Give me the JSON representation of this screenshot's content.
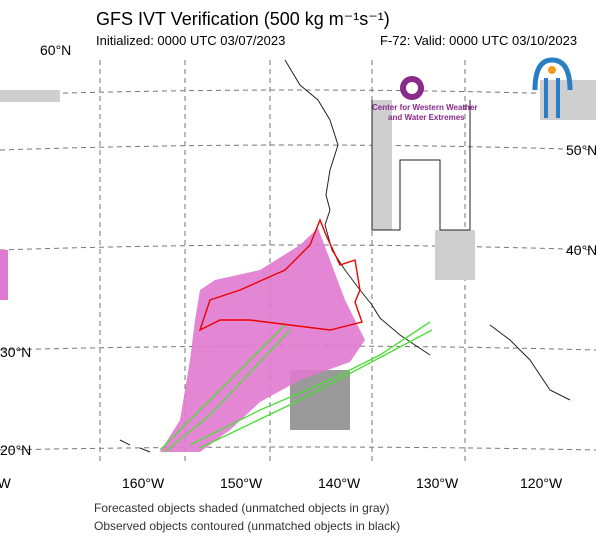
{
  "header": {
    "title": "GFS IVT Verification (500 kg m⁻¹s⁻¹)",
    "initialized": "Initialized: 0000 UTC 03/07/2023",
    "valid": "F-72: Valid: 0000 UTC 03/10/2023"
  },
  "logo": {
    "line1": "Center for Western Weather",
    "line2": "and Water Extremes"
  },
  "map": {
    "lat_labels": [
      "60°N",
      "50°N",
      "40°N",
      "30°N",
      "20°N"
    ],
    "lon_labels": [
      "°W",
      "160°W",
      "150°W",
      "140°W",
      "130°W",
      "120°W"
    ]
  },
  "footer": {
    "forecast_note": "Forecasted objects shaded (unmatched objects in gray)",
    "observed_note": "Observed objects contoured (unmatched objects in black)"
  }
}
